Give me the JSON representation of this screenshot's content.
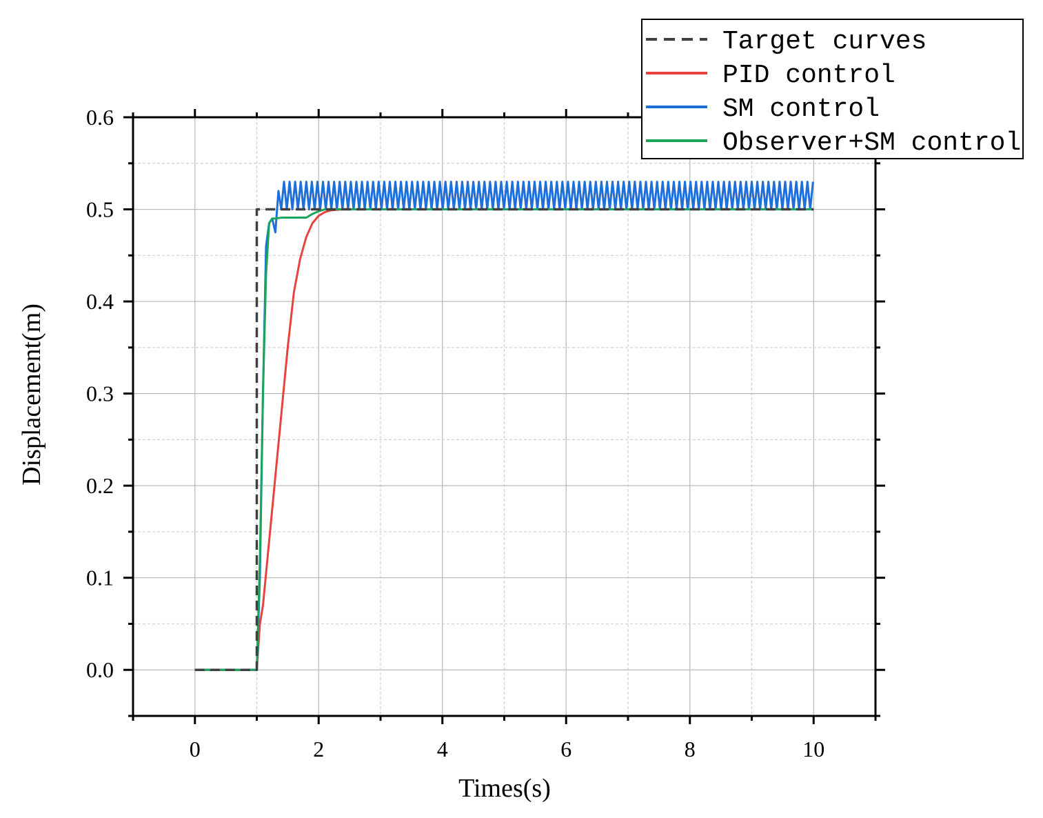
{
  "chart_data": {
    "type": "line",
    "title": "",
    "xlabel": "Times(s)",
    "ylabel": "Displacement(m)",
    "xlim": [
      -1,
      11
    ],
    "ylim": [
      -0.05,
      0.6
    ],
    "x_ticks": [
      "0",
      "2",
      "4",
      "6",
      "8",
      "10"
    ],
    "y_ticks": [
      "0.0",
      "0.1",
      "0.2",
      "0.3",
      "0.4",
      "0.5",
      "0.6"
    ],
    "grid": true,
    "legend_position": "top-right",
    "series": [
      {
        "name": "Target curves",
        "color": "#404040",
        "style": "dashed",
        "x": [
          0,
          1,
          1,
          10
        ],
        "y": [
          0,
          0,
          0.5,
          0.5
        ]
      },
      {
        "name": "PID control",
        "color": "#e8423f",
        "style": "solid",
        "x": [
          0,
          1,
          1.05,
          1.1,
          1.2,
          1.3,
          1.4,
          1.5,
          1.6,
          1.7,
          1.8,
          1.9,
          2.0,
          2.1,
          2.2,
          2.4,
          2.6,
          10
        ],
        "y": [
          0,
          0,
          0.05,
          0.07,
          0.14,
          0.21,
          0.28,
          0.35,
          0.41,
          0.446,
          0.47,
          0.485,
          0.493,
          0.497,
          0.499,
          0.5,
          0.5,
          0.5
        ]
      },
      {
        "name": "SM control",
        "color": "#1e6fd9",
        "style": "solid",
        "x": [
          0,
          1,
          1.05,
          1.1,
          1.15,
          1.2,
          1.25,
          1.3,
          1.35
        ],
        "y": [
          0,
          0,
          0.1,
          0.3,
          0.46,
          0.485,
          0.49,
          0.475,
          0.52
        ],
        "oscillation": {
          "start": 1.35,
          "end": 10,
          "period": 0.09,
          "low": 0.5,
          "high": 0.53
        }
      },
      {
        "name": "Observer+SM control",
        "color": "#1aa55a",
        "style": "solid",
        "x": [
          0,
          1,
          1.05,
          1.1,
          1.15,
          1.2,
          1.25,
          1.3,
          1.4,
          1.6,
          1.8,
          1.9,
          2.0,
          2.1,
          2.2,
          10
        ],
        "y": [
          0,
          0,
          0.12,
          0.3,
          0.43,
          0.485,
          0.49,
          0.49,
          0.491,
          0.491,
          0.491,
          0.495,
          0.498,
          0.5,
          0.5,
          0.5
        ]
      }
    ]
  }
}
